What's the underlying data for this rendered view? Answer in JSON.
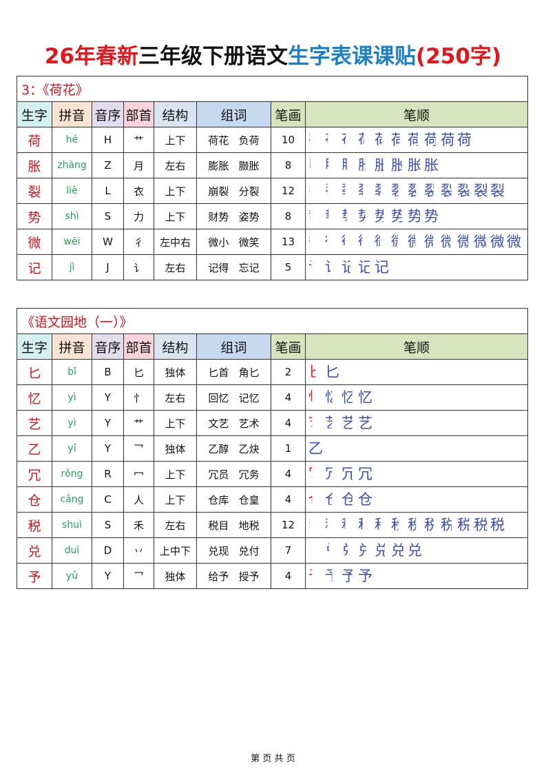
{
  "title": {
    "part1": "26年春新",
    "part2": "三年级下册语文",
    "part3": "生字表课课贴",
    "part4": "(250字)"
  },
  "headers": {
    "char": "生字",
    "pinyin": "拼音",
    "order": "音序",
    "radical": "部首",
    "structure": "结构",
    "words": "组词",
    "count": "笔画",
    "strokes": "笔顺"
  },
  "colors": {
    "red": "#e3161c",
    "blue": "#1a7fc4",
    "pinyin_green": "#22a355",
    "stroke_blue": "#3a4fb5"
  },
  "sections": [
    {
      "title": "3：《荷花》",
      "rows": [
        {
          "char": "荷",
          "pinyin": "hé",
          "order": "H",
          "radical": "艹",
          "structure": "上下",
          "w1": "荷花",
          "w2": "负荷",
          "count": "10"
        },
        {
          "char": "胀",
          "pinyin": "zhàng",
          "order": "Z",
          "radical": "月",
          "structure": "左右",
          "w1": "膨胀",
          "w2": "臌胀",
          "count": "8"
        },
        {
          "char": "裂",
          "pinyin": "liè",
          "order": "L",
          "radical": "衣",
          "structure": "上下",
          "w1": "崩裂",
          "w2": "分裂",
          "count": "12"
        },
        {
          "char": "势",
          "pinyin": "shì",
          "order": "S",
          "radical": "力",
          "structure": "上下",
          "w1": "财势",
          "w2": "姿势",
          "count": "8"
        },
        {
          "char": "微",
          "pinyin": "wēi",
          "order": "W",
          "radical": "彳",
          "structure": "左中右",
          "w1": "微小",
          "w2": "微笑",
          "count": "13"
        },
        {
          "char": "记",
          "pinyin": "jì",
          "order": "J",
          "radical": "讠",
          "structure": "左右",
          "w1": "记得",
          "w2": "忘记",
          "count": "5"
        }
      ]
    },
    {
      "title": "《语文园地（一）》",
      "rows": [
        {
          "char": "匕",
          "pinyin": "bǐ",
          "order": "B",
          "radical": "匕",
          "structure": "独体",
          "w1": "匕首",
          "w2": "角匕",
          "count": "2"
        },
        {
          "char": "忆",
          "pinyin": "yì",
          "order": "Y",
          "radical": "忄",
          "structure": "左右",
          "w1": "回忆",
          "w2": "记忆",
          "count": "4"
        },
        {
          "char": "艺",
          "pinyin": "yì",
          "order": "Y",
          "radical": "艹",
          "structure": "上下",
          "w1": "文艺",
          "w2": "艺术",
          "count": "4"
        },
        {
          "char": "乙",
          "pinyin": "yǐ",
          "order": "Y",
          "radical": "乛",
          "structure": "独体",
          "w1": "乙醇",
          "w2": "乙炔",
          "count": "1"
        },
        {
          "char": "冗",
          "pinyin": "rǒng",
          "order": "R",
          "radical": "冖",
          "structure": "上下",
          "w1": "冗员",
          "w2": "冗务",
          "count": "4"
        },
        {
          "char": "仓",
          "pinyin": "cāng",
          "order": "C",
          "radical": "人",
          "structure": "上下",
          "w1": "仓库",
          "w2": "仓皇",
          "count": "4"
        },
        {
          "char": "税",
          "pinyin": "shuì",
          "order": "S",
          "radical": "禾",
          "structure": "左右",
          "w1": "税目",
          "w2": "地税",
          "count": "12"
        },
        {
          "char": "兑",
          "pinyin": "duì",
          "order": "D",
          "radical": "丷",
          "structure": "上中下",
          "w1": "兑现",
          "w2": "兑付",
          "count": "7"
        },
        {
          "char": "予",
          "pinyin": "yǔ",
          "order": "Y",
          "radical": "乛",
          "structure": "独体",
          "w1": "给予",
          "w2": "授予",
          "count": "4"
        }
      ]
    }
  ],
  "footer": "第 页 共 页"
}
